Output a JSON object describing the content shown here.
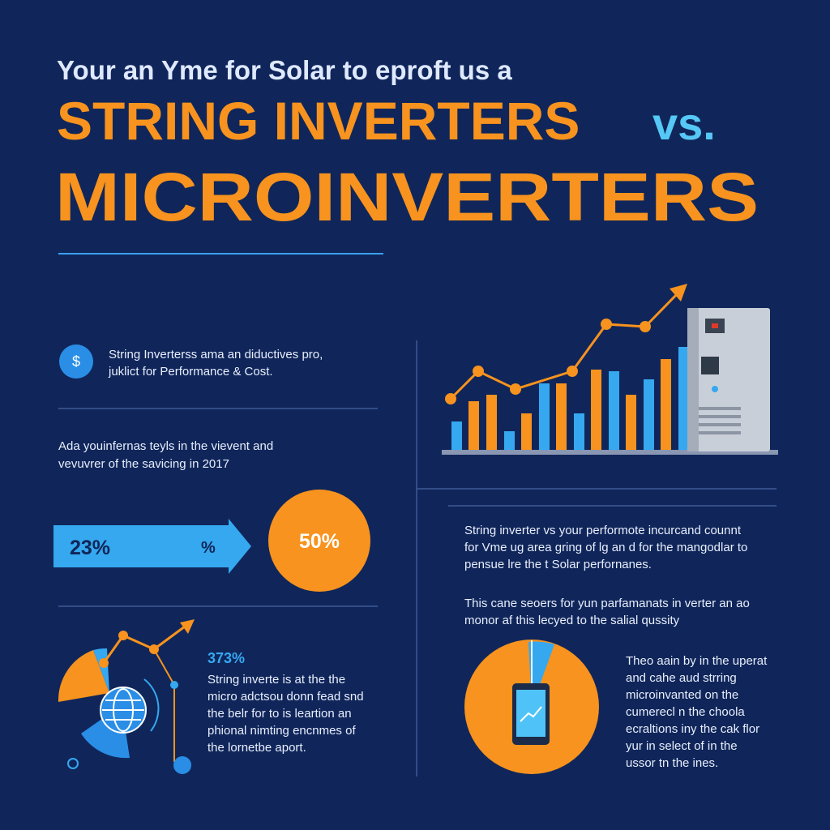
{
  "header": {
    "kicker": "Your  an Yme for Solar to eproft us a",
    "title_main": "STRING INVERTERS",
    "title_vs": "vs.",
    "title_line2": "MICROINVERTERS"
  },
  "left": {
    "cost_note": {
      "icon": "$",
      "lines": [
        "String Inverterss ama an diductives pro,",
        "juklict for Performance & Cost."
      ]
    },
    "intro": {
      "lines": [
        "Ada youinfernas teyls in the vievent and",
        "vevuvrer of the savicing in 2017"
      ]
    },
    "stats": {
      "arrow_value": "23%",
      "arrow_unit": "%",
      "circle_value": "50%"
    },
    "detail": {
      "heading": "373%",
      "lines": [
        "String inverte is at the the",
        "micro adctsou donn fead snd",
        "the belr for to is leartion an",
        "phional nimting encnmes of",
        "the lornetbe aport."
      ]
    }
  },
  "right": {
    "para1": {
      "lines": [
        "String inverter vs your performote incurcand counnt",
        "for Vme ug area gring of lg an d for the mangodlar to",
        "pensue lre the t Solar perfornanes."
      ]
    },
    "para2": {
      "lines": [
        "This cane seoers for yun parfamanats in verter an ao",
        "monor af this lecyed to the salial qussity"
      ]
    },
    "para3": {
      "lines": [
        "Theo aain by in the uperat",
        "and cahe aud strring",
        "microinvanted on the",
        "cumerecl n the choola",
        "ecraltions iny the cak flor",
        "yur in select of in the",
        "ussor tn the ines."
      ]
    }
  }
}
